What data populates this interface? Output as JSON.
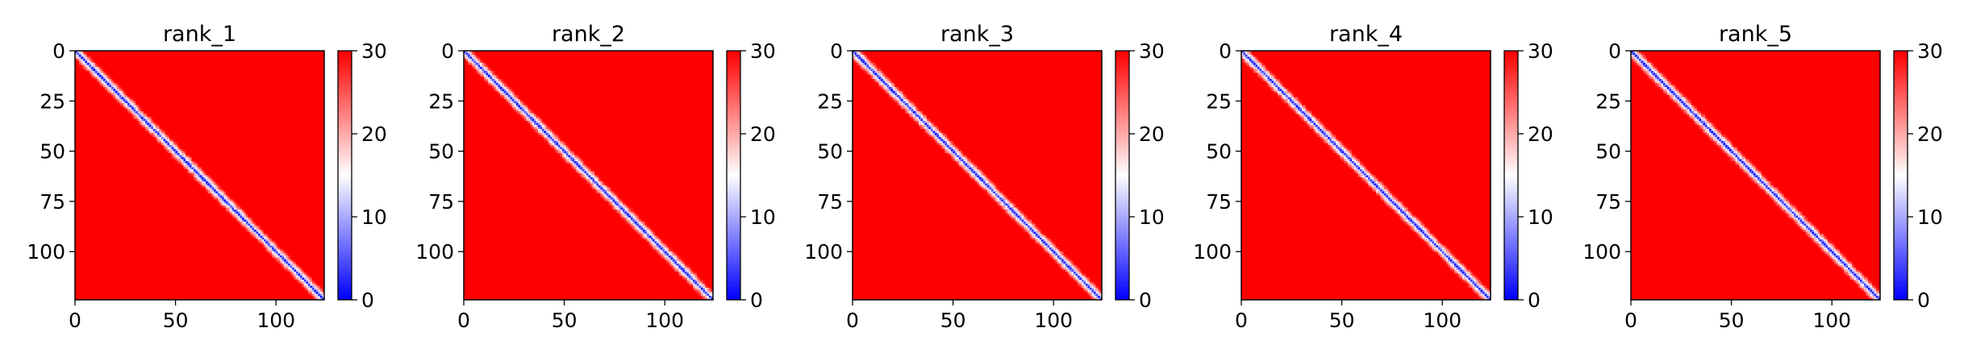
{
  "chart_data": [
    {
      "type": "heatmap",
      "title": "rank_1",
      "xlabel": "",
      "ylabel": "",
      "seed": 11,
      "n": 124,
      "xlim": [
        0,
        124
      ],
      "ylim": [
        124,
        0
      ],
      "xticks": [
        0,
        50,
        100
      ],
      "yticks": [
        0,
        25,
        50,
        75,
        100
      ],
      "colorbar": {
        "range": [
          0,
          30
        ],
        "ticks": [
          0,
          10,
          20,
          30
        ],
        "colormap": "bwr",
        "colors": [
          "#0000ff",
          "#ffffff",
          "#ff0000"
        ]
      }
    },
    {
      "type": "heatmap",
      "title": "rank_2",
      "xlabel": "",
      "ylabel": "",
      "seed": 23,
      "n": 124,
      "xlim": [
        0,
        124
      ],
      "ylim": [
        124,
        0
      ],
      "xticks": [
        0,
        50,
        100
      ],
      "yticks": [
        0,
        25,
        50,
        75,
        100
      ],
      "colorbar": {
        "range": [
          0,
          30
        ],
        "ticks": [
          0,
          10,
          20,
          30
        ],
        "colormap": "bwr",
        "colors": [
          "#0000ff",
          "#ffffff",
          "#ff0000"
        ]
      }
    },
    {
      "type": "heatmap",
      "title": "rank_3",
      "xlabel": "",
      "ylabel": "",
      "seed": 37,
      "n": 124,
      "xlim": [
        0,
        124
      ],
      "ylim": [
        124,
        0
      ],
      "xticks": [
        0,
        50,
        100
      ],
      "yticks": [
        0,
        25,
        50,
        75,
        100
      ],
      "colorbar": {
        "range": [
          0,
          30
        ],
        "ticks": [
          0,
          10,
          20,
          30
        ],
        "colormap": "bwr",
        "colors": [
          "#0000ff",
          "#ffffff",
          "#ff0000"
        ]
      }
    },
    {
      "type": "heatmap",
      "title": "rank_4",
      "xlabel": "",
      "ylabel": "",
      "seed": 41,
      "n": 124,
      "xlim": [
        0,
        124
      ],
      "ylim": [
        124,
        0
      ],
      "xticks": [
        0,
        50,
        100
      ],
      "yticks": [
        0,
        25,
        50,
        75,
        100
      ],
      "colorbar": {
        "range": [
          0,
          30
        ],
        "ticks": [
          0,
          10,
          20,
          30
        ],
        "colormap": "bwr",
        "colors": [
          "#0000ff",
          "#ffffff",
          "#ff0000"
        ]
      }
    },
    {
      "type": "heatmap",
      "title": "rank_5",
      "xlabel": "",
      "ylabel": "",
      "seed": 53,
      "n": 124,
      "xlim": [
        0,
        124
      ],
      "ylim": [
        124,
        0
      ],
      "xticks": [
        0,
        50,
        100
      ],
      "yticks": [
        0,
        25,
        50,
        75,
        100
      ],
      "colorbar": {
        "range": [
          0,
          30
        ],
        "ticks": [
          0,
          10,
          20,
          30
        ],
        "colormap": "bwr",
        "colors": [
          "#0000ff",
          "#ffffff",
          "#ff0000"
        ]
      }
    }
  ]
}
